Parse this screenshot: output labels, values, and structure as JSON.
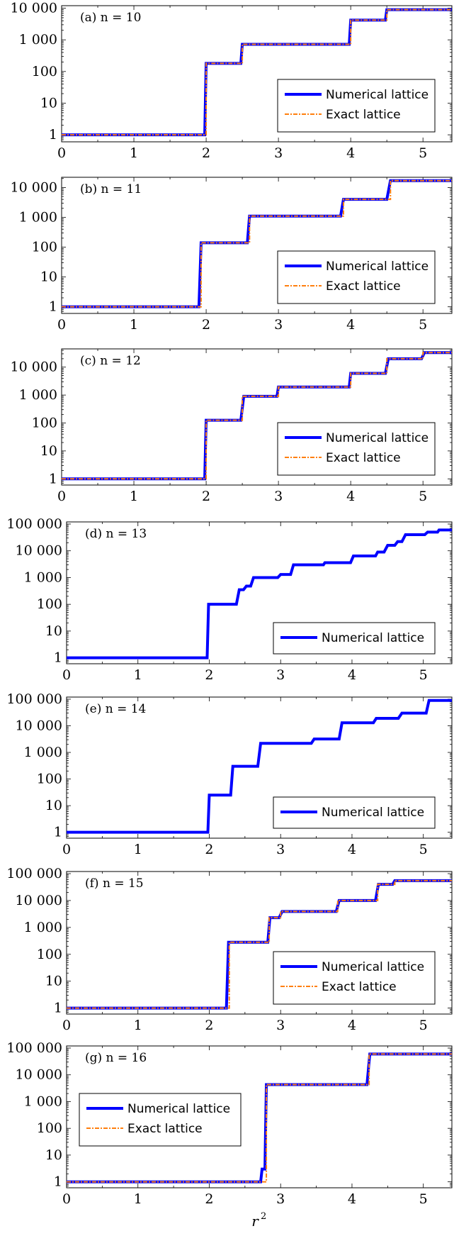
{
  "chart_data": [
    {
      "type": "line",
      "panel_label": "(a) n = 10",
      "xlim": [
        0,
        5.4
      ],
      "ylim": [
        0.6,
        12000
      ],
      "yscale": "log",
      "xticks": [
        "0",
        "1",
        "2",
        "3",
        "4",
        "5"
      ],
      "yticks": [
        "1",
        "10",
        "100",
        "1 000",
        "10 000"
      ],
      "legend_position": "bottom-right",
      "series": [
        {
          "name": "Numerical lattice",
          "color": "#0000ff",
          "style": "solid",
          "points": [
            [
              0,
              1
            ],
            [
              1.98,
              1
            ],
            [
              2,
              180
            ],
            [
              2.48,
              180
            ],
            [
              2.5,
              720
            ],
            [
              3.98,
              720
            ],
            [
              4,
              4200
            ],
            [
              4.48,
              4200
            ],
            [
              4.5,
              9000
            ],
            [
              5.4,
              9000
            ]
          ]
        },
        {
          "name": "Exact lattice",
          "color": "#ff7f0e",
          "style": "dashdot",
          "points": [
            [
              0,
              1
            ],
            [
              2,
              1
            ],
            [
              2,
              180
            ],
            [
              2.5,
              180
            ],
            [
              2.5,
              720
            ],
            [
              4,
              720
            ],
            [
              4,
              4200
            ],
            [
              4.5,
              4200
            ],
            [
              4.5,
              9000
            ],
            [
              5.4,
              9000
            ]
          ]
        }
      ]
    },
    {
      "type": "line",
      "panel_label": "(b) n = 11",
      "xlim": [
        0,
        5.4
      ],
      "ylim": [
        0.6,
        22000
      ],
      "yscale": "log",
      "xticks": [
        "0",
        "1",
        "2",
        "3",
        "4",
        "5"
      ],
      "yticks": [
        "1",
        "10",
        "100",
        "1 000",
        "10 000"
      ],
      "legend_position": "bottom-right",
      "series": [
        {
          "name": "Numerical lattice",
          "color": "#0000ff",
          "style": "solid",
          "points": [
            [
              0,
              1
            ],
            [
              1.9,
              1
            ],
            [
              1.93,
              140
            ],
            [
              2.57,
              140
            ],
            [
              2.6,
              1100
            ],
            [
              3.86,
              1100
            ],
            [
              3.9,
              4000
            ],
            [
              4.5,
              4000
            ],
            [
              4.55,
              17000
            ],
            [
              5.4,
              17000
            ]
          ]
        },
        {
          "name": "Exact lattice",
          "color": "#ff7f0e",
          "style": "dashdot",
          "points": [
            [
              0,
              1
            ],
            [
              1.93,
              1
            ],
            [
              1.93,
              140
            ],
            [
              2.6,
              140
            ],
            [
              2.6,
              1100
            ],
            [
              3.9,
              1100
            ],
            [
              3.9,
              4000
            ],
            [
              4.55,
              4000
            ],
            [
              4.55,
              17000
            ],
            [
              5.4,
              17000
            ]
          ]
        }
      ]
    },
    {
      "type": "line",
      "panel_label": "(c) n = 12",
      "xlim": [
        0,
        5.4
      ],
      "ylim": [
        0.6,
        45000
      ],
      "yscale": "log",
      "xticks": [
        "0",
        "1",
        "2",
        "3",
        "4",
        "5"
      ],
      "yticks": [
        "1",
        "10",
        "100",
        "1 000",
        "10 000"
      ],
      "legend_position": "bottom-right",
      "series": [
        {
          "name": "Numerical lattice",
          "color": "#0000ff",
          "style": "solid",
          "points": [
            [
              0,
              1
            ],
            [
              1.98,
              1
            ],
            [
              2,
              125
            ],
            [
              2.48,
              125
            ],
            [
              2.52,
              900
            ],
            [
              2.98,
              900
            ],
            [
              3,
              1950
            ],
            [
              3.98,
              1950
            ],
            [
              4,
              6000
            ],
            [
              4.48,
              6000
            ],
            [
              4.52,
              20000
            ],
            [
              4.98,
              20000
            ],
            [
              5.02,
              33000
            ],
            [
              5.4,
              33000
            ]
          ]
        },
        {
          "name": "Exact lattice",
          "color": "#ff7f0e",
          "style": "dashdot",
          "points": [
            [
              0,
              1
            ],
            [
              2,
              1
            ],
            [
              2,
              125
            ],
            [
              2.5,
              125
            ],
            [
              2.5,
              900
            ],
            [
              3,
              900
            ],
            [
              3,
              1950
            ],
            [
              4,
              1950
            ],
            [
              4,
              6000
            ],
            [
              4.5,
              6000
            ],
            [
              4.5,
              20000
            ],
            [
              5,
              20000
            ],
            [
              5,
              33000
            ],
            [
              5.4,
              33000
            ]
          ]
        }
      ]
    },
    {
      "type": "line",
      "panel_label": "(d) n = 13",
      "xlim": [
        0,
        5.4
      ],
      "ylim": [
        0.6,
        120000
      ],
      "yscale": "log",
      "xticks": [
        "0",
        "1",
        "2",
        "3",
        "4",
        "5"
      ],
      "yticks": [
        "1",
        "10",
        "100",
        "1 000",
        "10 000",
        "100 000"
      ],
      "legend_position": "bottom-right",
      "series": [
        {
          "name": "Numerical lattice",
          "color": "#0000ff",
          "style": "solid",
          "points": [
            [
              0,
              1
            ],
            [
              1.97,
              1
            ],
            [
              1.99,
              100
            ],
            [
              2.38,
              100
            ],
            [
              2.42,
              350
            ],
            [
              2.48,
              350
            ],
            [
              2.52,
              480
            ],
            [
              2.58,
              480
            ],
            [
              2.62,
              1000
            ],
            [
              2.96,
              1000
            ],
            [
              3,
              1300
            ],
            [
              3.14,
              1300
            ],
            [
              3.18,
              3000
            ],
            [
              3.6,
              3000
            ],
            [
              3.62,
              3600
            ],
            [
              3.98,
              3600
            ],
            [
              4.02,
              6400
            ],
            [
              4.33,
              6400
            ],
            [
              4.36,
              9000
            ],
            [
              4.45,
              9000
            ],
            [
              4.5,
              16000
            ],
            [
              4.6,
              16000
            ],
            [
              4.64,
              22000
            ],
            [
              4.7,
              22000
            ],
            [
              4.75,
              40000
            ],
            [
              5.02,
              40000
            ],
            [
              5.06,
              50000
            ],
            [
              5.2,
              50000
            ],
            [
              5.22,
              60000
            ],
            [
              5.4,
              60000
            ]
          ]
        }
      ]
    },
    {
      "type": "line",
      "panel_label": "(e) n = 14",
      "xlim": [
        0,
        5.4
      ],
      "ylim": [
        0.6,
        120000
      ],
      "yscale": "log",
      "xticks": [
        "0",
        "1",
        "2",
        "3",
        "4",
        "5"
      ],
      "yticks": [
        "1",
        "10",
        "100",
        "1 000",
        "10 000",
        "100 000"
      ],
      "legend_position": "bottom-right",
      "series": [
        {
          "name": "Numerical lattice",
          "color": "#0000ff",
          "style": "solid",
          "points": [
            [
              0,
              1
            ],
            [
              1.98,
              1
            ],
            [
              2,
              25
            ],
            [
              2.3,
              25
            ],
            [
              2.33,
              300
            ],
            [
              2.68,
              300
            ],
            [
              2.72,
              2200
            ],
            [
              3.43,
              2200
            ],
            [
              3.47,
              3200
            ],
            [
              3.82,
              3200
            ],
            [
              3.86,
              13000
            ],
            [
              4.3,
              13000
            ],
            [
              4.34,
              19000
            ],
            [
              4.65,
              19000
            ],
            [
              4.7,
              30000
            ],
            [
              5.04,
              30000
            ],
            [
              5.08,
              90000
            ],
            [
              5.4,
              90000
            ]
          ]
        }
      ]
    },
    {
      "type": "line",
      "panel_label": "(f) n = 15",
      "xlim": [
        0,
        5.4
      ],
      "ylim": [
        0.6,
        120000
      ],
      "yscale": "log",
      "xticks": [
        "0",
        "1",
        "2",
        "3",
        "4",
        "5"
      ],
      "yticks": [
        "1",
        "10",
        "100",
        "1 000",
        "10 000",
        "100 000"
      ],
      "legend_position": "bottom-right",
      "series": [
        {
          "name": "Numerical lattice",
          "color": "#0000ff",
          "style": "solid",
          "points": [
            [
              0,
              1
            ],
            [
              2.24,
              1
            ],
            [
              2.27,
              280
            ],
            [
              2.82,
              280
            ],
            [
              2.85,
              2300
            ],
            [
              2.98,
              2300
            ],
            [
              3.02,
              3900
            ],
            [
              3.78,
              3900
            ],
            [
              3.82,
              10000
            ],
            [
              4.33,
              10000
            ],
            [
              4.37,
              40000
            ],
            [
              4.57,
              40000
            ],
            [
              4.6,
              55000
            ],
            [
              5.4,
              55000
            ]
          ]
        },
        {
          "name": "Exact lattice",
          "color": "#ff7f0e",
          "style": "dashdot",
          "points": [
            [
              0,
              1
            ],
            [
              2.28,
              1
            ],
            [
              2.28,
              280
            ],
            [
              2.84,
              280
            ],
            [
              2.84,
              2300
            ],
            [
              3,
              2300
            ],
            [
              3,
              3900
            ],
            [
              3.8,
              3900
            ],
            [
              3.8,
              10000
            ],
            [
              4.36,
              10000
            ],
            [
              4.36,
              40000
            ],
            [
              4.6,
              40000
            ],
            [
              4.6,
              55000
            ],
            [
              5.4,
              55000
            ]
          ]
        }
      ]
    },
    {
      "type": "line",
      "panel_label": "(g) n = 16",
      "xlim": [
        0,
        5.4
      ],
      "ylim": [
        0.6,
        120000
      ],
      "yscale": "log",
      "xticks": [
        "0",
        "1",
        "2",
        "3",
        "4",
        "5"
      ],
      "yticks": [
        "1",
        "10",
        "100",
        "1 000",
        "10 000",
        "100 000"
      ],
      "xlabel": "r²",
      "legend_position": "top-left",
      "series": [
        {
          "name": "Numerical lattice",
          "color": "#0000ff",
          "style": "solid",
          "points": [
            [
              0,
              1
            ],
            [
              2.72,
              1
            ],
            [
              2.74,
              3
            ],
            [
              2.78,
              3
            ],
            [
              2.8,
              4300
            ],
            [
              4.21,
              4300
            ],
            [
              4.25,
              60000
            ],
            [
              5.4,
              60000
            ]
          ]
        },
        {
          "name": "Exact lattice",
          "color": "#ff7f0e",
          "style": "dashdot",
          "points": [
            [
              0,
              1
            ],
            [
              2.8,
              1
            ],
            [
              2.8,
              4300
            ],
            [
              4.24,
              4300
            ],
            [
              4.24,
              60000
            ],
            [
              5.4,
              60000
            ]
          ]
        }
      ]
    }
  ]
}
